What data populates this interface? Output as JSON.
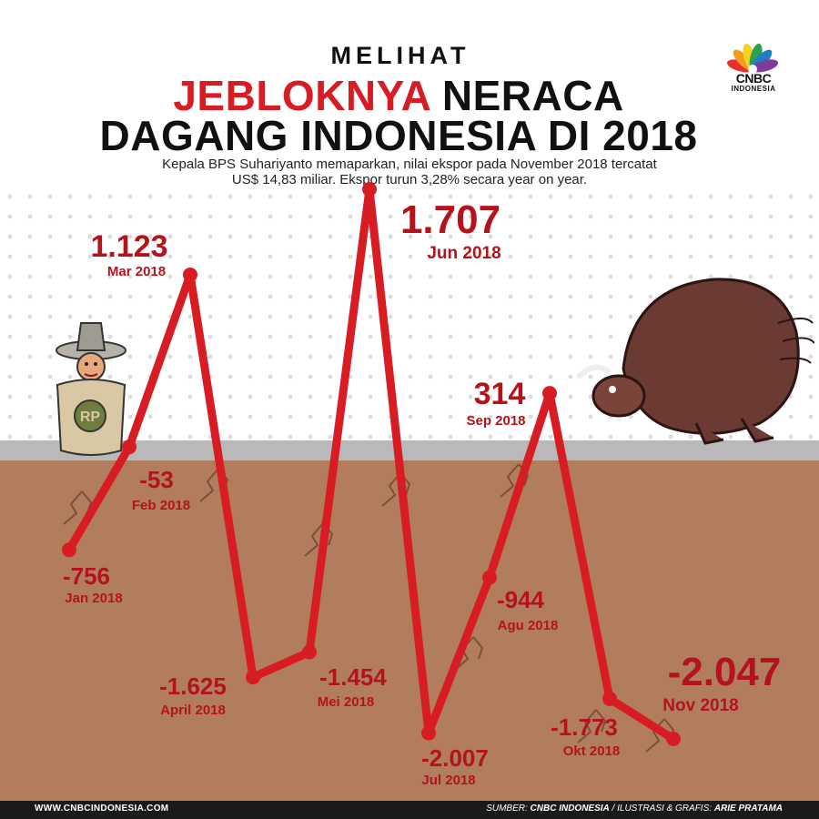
{
  "header": {
    "kicker": "MELIHAT",
    "title_red": "JEBLOKNYA",
    "title_rest": "NERACA",
    "title_line2": "DAGANG INDONESIA DI 2018",
    "subtitle_line1": "Kepala BPS Suhariyanto memaparkan, nilai ekspor pada November 2018 tercatat",
    "subtitle_line2": "US$ 14,83 miliar. Ekspor turun 3,28% secara year on year."
  },
  "logo": {
    "name": "CNBC",
    "sub": "INDONESIA"
  },
  "footer": {
    "website": "WWW.CNBCINDONESIA.COM",
    "source_prefix": "SUMBER: ",
    "source": "CNBC INDONESIA",
    "credit_prefix": " / ILUSTRASI & GRAFIS: ",
    "credit": "ARIE PRATAMA"
  },
  "colors": {
    "line": "#d81c23",
    "label": "#b3141c",
    "soil": "#b27d5c",
    "ground": "#b9b9b9"
  },
  "illustrations": {
    "left": "farmer-in-rupiah-sack-icon",
    "right": "charging-bull-icon"
  },
  "chart_data": {
    "type": "line",
    "title": "MELIHAT JEBLOKNYA NERACA DAGANG INDONESIA DI 2018",
    "x": [
      "Jan 2018",
      "Feb 2018",
      "Mar 2018",
      "April 2018",
      "Mei 2018",
      "Jun 2018",
      "Jul 2018",
      "Agu 2018",
      "Sep 2018",
      "Okt 2018",
      "Nov 2018"
    ],
    "series": [
      {
        "values": [
          -756,
          -53,
          1123,
          -1625,
          -1454,
          1707,
          -2007,
          -944,
          314,
          -1773,
          -2047
        ],
        "labels": [
          "-756",
          "-53",
          "1.123",
          "-1.625",
          "-1.454",
          "1.707",
          "-2.007",
          "-944",
          "314",
          "-1.773",
          "-2.047"
        ]
      }
    ],
    "xlabel": "",
    "ylabel": "",
    "ylim": [
      -2100,
      1800
    ],
    "grid": false,
    "legend": "none"
  }
}
